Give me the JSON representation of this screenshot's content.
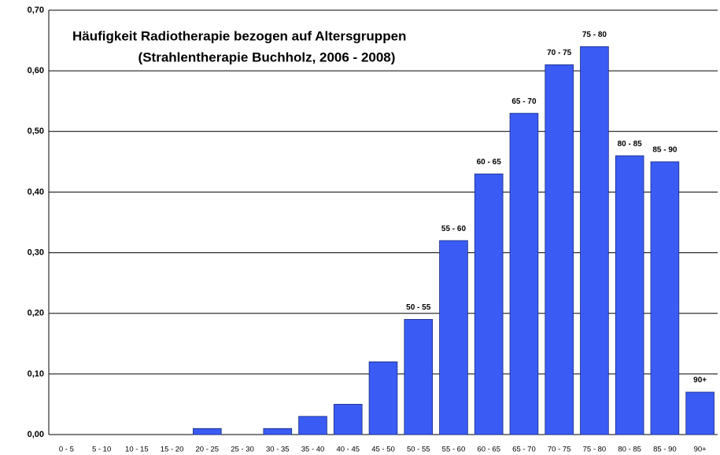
{
  "chart_data": {
    "type": "bar",
    "title": "Häufigkeit Radiotherapie bezogen auf Altersgruppen",
    "subtitle": "(Strahlentherapie Buchholz, 2006 - 2008)",
    "categories": [
      "0 - 5",
      "5 - 10",
      "10 - 15",
      "15 - 20",
      "20 - 25",
      "25 - 30",
      "30 - 35",
      "35 - 40",
      "40 - 45",
      "45 - 50",
      "50 - 55",
      "55 - 60",
      "60 - 65",
      "65 - 70",
      "70 - 75",
      "75 - 80",
      "80 - 85",
      "85 - 90",
      "90+"
    ],
    "values": [
      0,
      0,
      0,
      0,
      0.01,
      0,
      0.01,
      0.03,
      0.05,
      0.12,
      0.19,
      0.32,
      0.43,
      0.53,
      0.61,
      0.64,
      0.46,
      0.45,
      0.07
    ],
    "bar_labels": [
      null,
      null,
      null,
      null,
      null,
      null,
      null,
      null,
      null,
      null,
      "50 - 55",
      "55 - 60",
      "60 - 65",
      "65 - 70",
      "70 - 75",
      "75 - 80",
      "80 - 85",
      "85 - 90",
      "90+"
    ],
    "color": "#3a5cf5",
    "ylim": [
      0,
      0.7
    ],
    "yticks": [
      {
        "value": 0,
        "label": "0,00"
      },
      {
        "value": 0.1,
        "label": "0,10"
      },
      {
        "value": 0.2,
        "label": "0,20"
      },
      {
        "value": 0.3,
        "label": "0,30"
      },
      {
        "value": 0.4,
        "label": "0,40"
      },
      {
        "value": 0.5,
        "label": "0,50"
      },
      {
        "value": 0.6,
        "label": "0,60"
      },
      {
        "value": 0.7,
        "label": "0,70"
      }
    ],
    "grid": true
  }
}
